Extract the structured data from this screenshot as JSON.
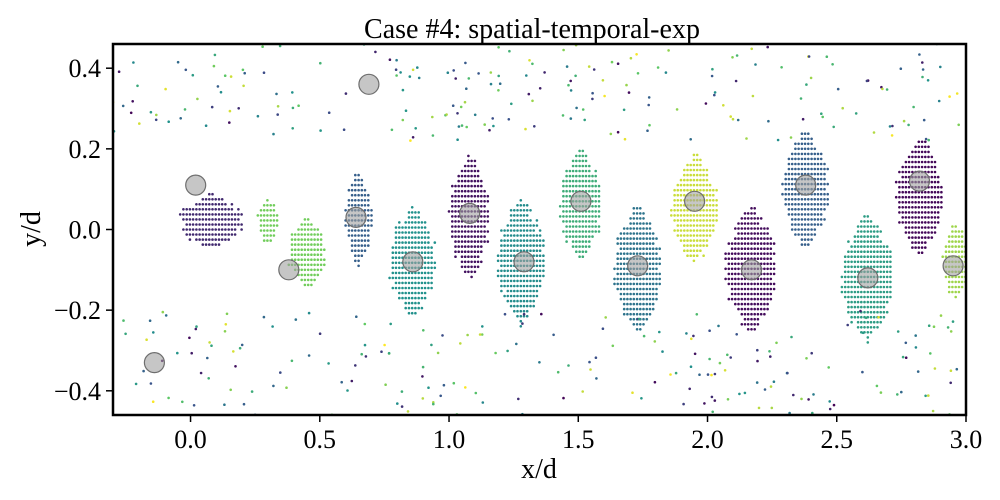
{
  "chart_data": {
    "type": "scatter",
    "title": "Case #4: spatial-temporal-exp",
    "xlabel": "x/d",
    "ylabel": "y/d",
    "xlim": [
      -0.3,
      3.0
    ],
    "ylim": [
      -0.46,
      0.46
    ],
    "xticks": [
      0.0,
      0.5,
      1.0,
      1.5,
      2.0,
      2.5,
      3.0
    ],
    "xtick_labels": [
      "0.0",
      "0.5",
      "1.0",
      "1.5",
      "2.0",
      "2.5",
      "3.0"
    ],
    "yticks": [
      -0.4,
      -0.2,
      0.0,
      0.2,
      0.4
    ],
    "ytick_labels": [
      "−0.4",
      "−0.2",
      "0.0",
      "0.2",
      "0.4"
    ],
    "grid": false,
    "colormap": "viridis",
    "clusters": [
      {
        "x": 0.08,
        "y": 0.02,
        "rx": 0.12,
        "ry": 0.07,
        "c": 0.12
      },
      {
        "x": 0.3,
        "y": 0.02,
        "rx": 0.04,
        "ry": 0.06,
        "c": 0.78
      },
      {
        "x": 0.45,
        "y": -0.06,
        "rx": 0.07,
        "ry": 0.09,
        "c": 0.78
      },
      {
        "x": 0.65,
        "y": 0.03,
        "rx": 0.05,
        "ry": 0.12,
        "c": 0.3
      },
      {
        "x": 0.86,
        "y": -0.08,
        "rx": 0.09,
        "ry": 0.14,
        "c": 0.5
      },
      {
        "x": 1.08,
        "y": 0.03,
        "rx": 0.08,
        "ry": 0.16,
        "c": 0.05
      },
      {
        "x": 1.28,
        "y": -0.08,
        "rx": 0.09,
        "ry": 0.16,
        "c": 0.48
      },
      {
        "x": 1.51,
        "y": 0.06,
        "rx": 0.08,
        "ry": 0.14,
        "c": 0.62
      },
      {
        "x": 1.73,
        "y": -0.1,
        "rx": 0.09,
        "ry": 0.16,
        "c": 0.38
      },
      {
        "x": 1.95,
        "y": 0.05,
        "rx": 0.09,
        "ry": 0.14,
        "c": 0.92
      },
      {
        "x": 2.17,
        "y": -0.1,
        "rx": 0.1,
        "ry": 0.16,
        "c": 0.03
      },
      {
        "x": 2.38,
        "y": 0.1,
        "rx": 0.09,
        "ry": 0.15,
        "c": 0.3
      },
      {
        "x": 2.62,
        "y": -0.12,
        "rx": 0.1,
        "ry": 0.16,
        "c": 0.55
      },
      {
        "x": 2.82,
        "y": 0.08,
        "rx": 0.09,
        "ry": 0.15,
        "c": 0.02
      },
      {
        "x": 2.96,
        "y": -0.08,
        "rx": 0.05,
        "ry": 0.1,
        "c": 0.85
      }
    ],
    "markers": [
      {
        "x": 0.02,
        "y": 0.11
      },
      {
        "x": 0.38,
        "y": -0.1
      },
      {
        "x": 0.69,
        "y": 0.36
      },
      {
        "x": 0.86,
        "y": -0.08
      },
      {
        "x": -0.14,
        "y": -0.33
      },
      {
        "x": 1.08,
        "y": 0.04
      },
      {
        "x": 1.29,
        "y": -0.08
      },
      {
        "x": 1.51,
        "y": 0.07
      },
      {
        "x": 1.73,
        "y": -0.09
      },
      {
        "x": 1.95,
        "y": 0.07
      },
      {
        "x": 2.17,
        "y": -0.1
      },
      {
        "x": 2.38,
        "y": 0.11
      },
      {
        "x": 2.62,
        "y": -0.12
      },
      {
        "x": 2.82,
        "y": 0.12
      },
      {
        "x": 2.95,
        "y": -0.09
      },
      {
        "x": 0.64,
        "y": 0.03
      }
    ],
    "marker_color": "#a0a0a0"
  }
}
